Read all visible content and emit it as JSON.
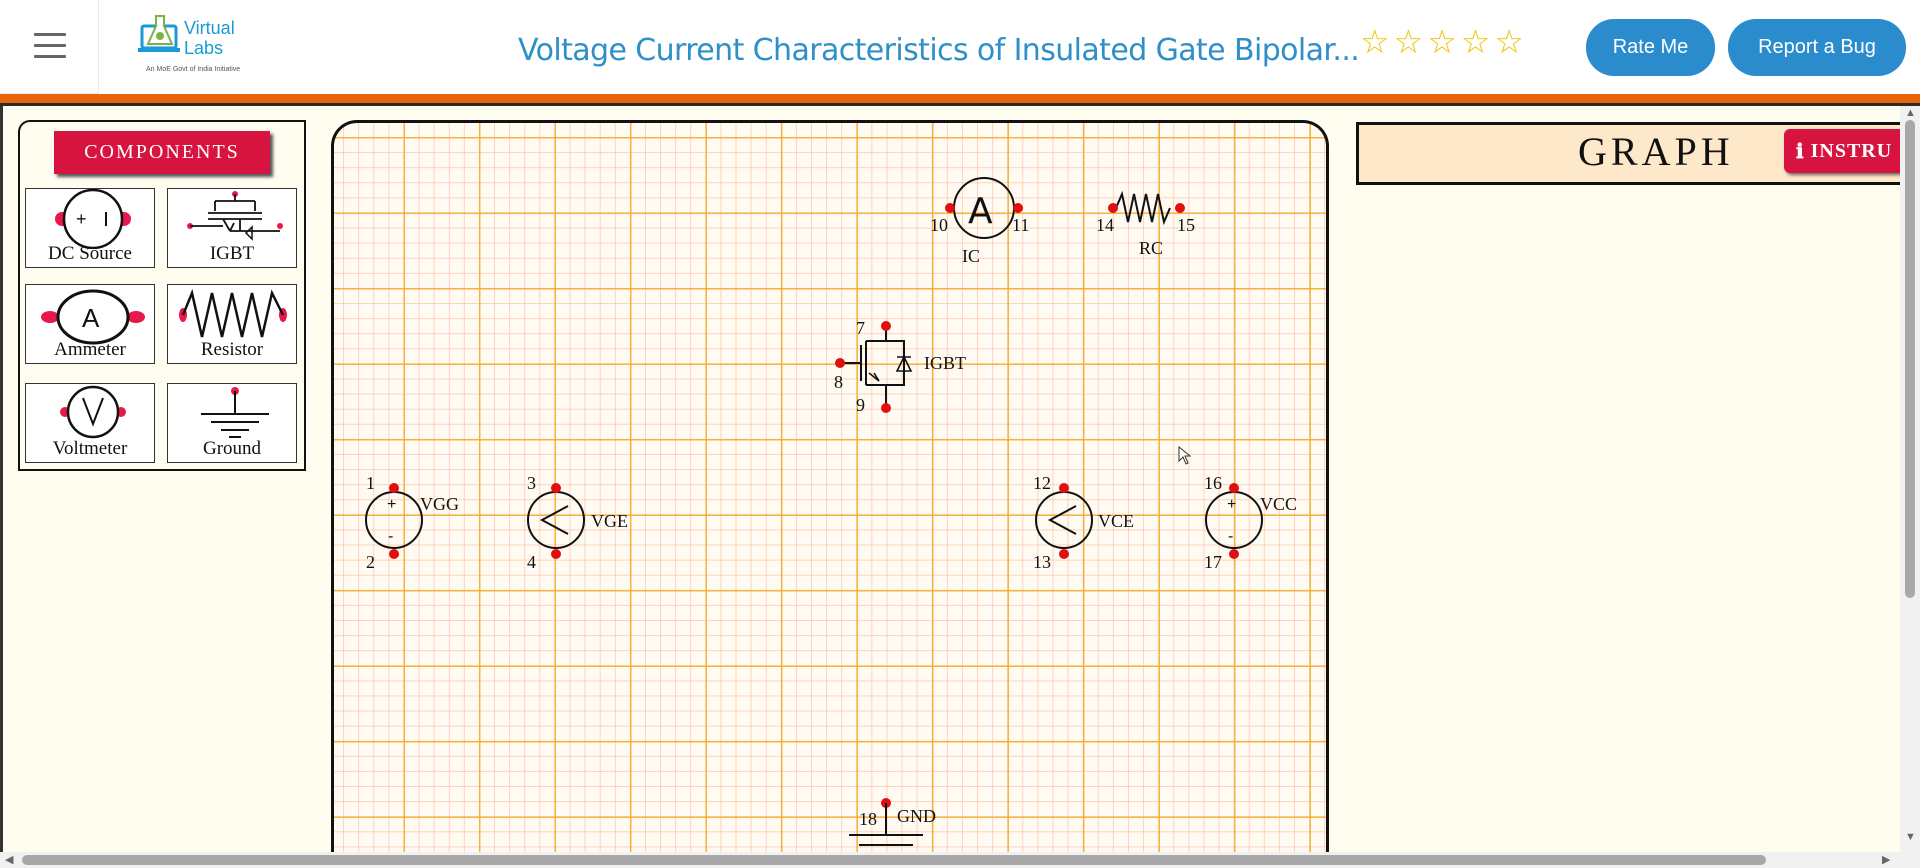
{
  "header": {
    "logo_text_line1": "Virtual",
    "logo_text_line2": "Labs",
    "logo_subtext": "An MoE Govt of India Initiative",
    "title": "Voltage Current Characteristics of Insulated Gate Bipolar...",
    "rating_stars": 5,
    "rate_label": "Rate Me",
    "bug_label": "Report a Bug"
  },
  "components": {
    "header": "COMPONENTS",
    "items": [
      {
        "label": "DC Source",
        "icon": "dc-source-icon"
      },
      {
        "label": "IGBT",
        "icon": "igbt-icon"
      },
      {
        "label": "Ammeter",
        "icon": "ammeter-icon"
      },
      {
        "label": "Resistor",
        "icon": "resistor-icon"
      },
      {
        "label": "Voltmeter",
        "icon": "voltmeter-icon"
      },
      {
        "label": "Ground",
        "icon": "ground-icon"
      }
    ]
  },
  "circuit": {
    "vgg": {
      "label": "VGG",
      "pins": [
        "1",
        "2"
      ]
    },
    "vge": {
      "label": "VGE",
      "pins": [
        "3",
        "4"
      ]
    },
    "igbt": {
      "label": "IGBT",
      "pins": [
        "7",
        "8",
        "9"
      ]
    },
    "ic": {
      "label": "IC",
      "pins": [
        "10",
        "11"
      ]
    },
    "rc": {
      "label": "RC",
      "pins": [
        "14",
        "15"
      ]
    },
    "vce": {
      "label": "VCE",
      "pins": [
        "12",
        "13"
      ]
    },
    "vcc": {
      "label": "VCC",
      "pins": [
        "16",
        "17"
      ]
    },
    "gnd": {
      "label": "GND",
      "pins": [
        "18"
      ]
    }
  },
  "graph": {
    "title": "GRAPH",
    "instructions_label": "INSTRU"
  },
  "colors": {
    "accent_blue": "#2b8ccd",
    "accent_red": "#d6143f",
    "orange_bar": "#e8650c",
    "pin_red": "#e01010"
  }
}
